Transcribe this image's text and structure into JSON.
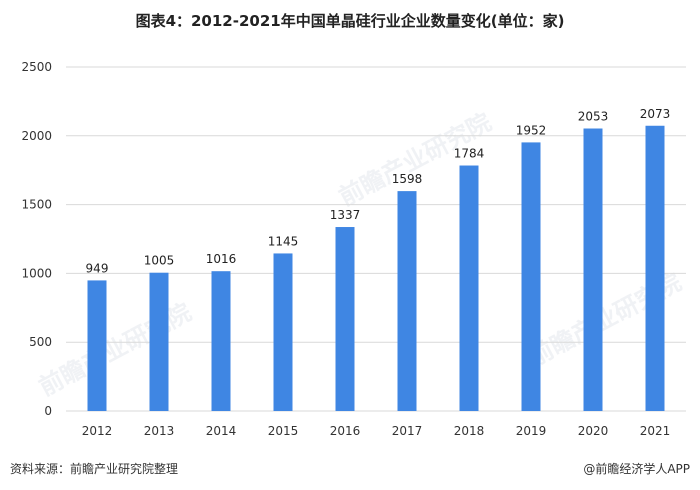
{
  "chart_data": {
    "type": "bar",
    "title": "图表4：2012-2021年中国单晶硅行业企业数量变化(单位：家)",
    "categories": [
      "2012",
      "2013",
      "2014",
      "2015",
      "2016",
      "2017",
      "2018",
      "2019",
      "2020",
      "2021"
    ],
    "values": [
      949,
      1005,
      1016,
      1145,
      1337,
      1598,
      1784,
      1952,
      2053,
      2073
    ],
    "ylim": [
      0,
      2500
    ],
    "yticks": [
      0,
      500,
      1000,
      1500,
      2000,
      2500
    ],
    "grid": true,
    "bar_color": "#3f86e3",
    "grid_color": "#d9d9d9"
  },
  "footer": {
    "source": "资料来源：前瞻产业研究院整理",
    "brand": "@前瞻经济学人APP"
  },
  "watermark": "前瞻产业研究院"
}
